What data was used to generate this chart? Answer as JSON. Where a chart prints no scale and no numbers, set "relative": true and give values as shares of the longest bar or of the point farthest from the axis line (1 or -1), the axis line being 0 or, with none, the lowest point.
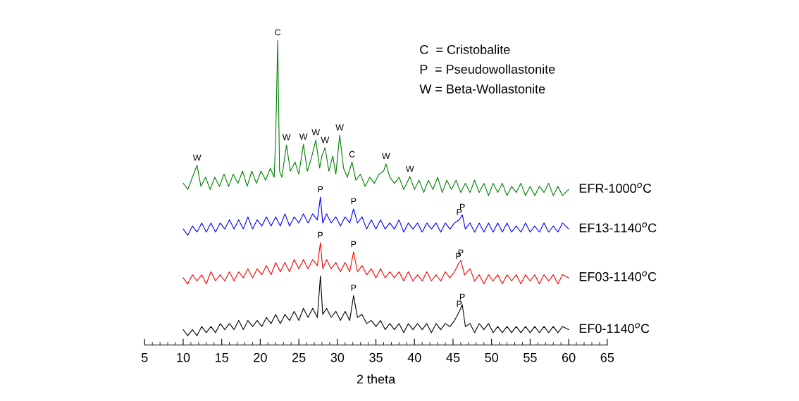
{
  "chart_data": {
    "type": "line",
    "xlabel": "2 theta",
    "xlim": [
      5,
      65
    ],
    "xticks": [
      5,
      10,
      15,
      20,
      25,
      30,
      35,
      40,
      45,
      50,
      55,
      60,
      65
    ],
    "relative": true,
    "tick_labels": "x",
    "legend": false,
    "grid": false,
    "series": [
      {
        "name": "EFR-1000$^{o}$C",
        "color": "#008000",
        "x": [
          10,
          10.6,
          11.2,
          11.8,
          12.3,
          12.9,
          13.5,
          14.1,
          14.7,
          15.3,
          15.9,
          16.5,
          17.1,
          17.7,
          18.3,
          18.9,
          19.5,
          20.1,
          20.7,
          21.3,
          21.8,
          22.0,
          22.26,
          22.5,
          22.8,
          23.4,
          23.9,
          24.5,
          25.0,
          25.6,
          26.1,
          26.6,
          27.2,
          27.7,
          28.0,
          28.4,
          28.9,
          29.4,
          29.8,
          30.3,
          30.8,
          31.3,
          31.9,
          32.4,
          33.0,
          33.6,
          34.2,
          34.8,
          35.4,
          36.0,
          36.3,
          36.8,
          37.4,
          38.0,
          38.6,
          39.0,
          39.4,
          40.0,
          40.6,
          41.2,
          41.8,
          42.4,
          43.0,
          43.6,
          44.2,
          44.8,
          45.4,
          46.0,
          46.6,
          47.2,
          47.8,
          48.4,
          49.0,
          49.6,
          50.2,
          50.8,
          51.4,
          52.0,
          52.6,
          53.2,
          53.8,
          54.4,
          55.0,
          55.6,
          56.2,
          56.8,
          57.4,
          58.0,
          58.6,
          59.2,
          60.0
        ],
        "values": [
          0.53,
          0.51,
          0.55,
          0.589,
          0.52,
          0.55,
          0.51,
          0.55,
          0.52,
          0.56,
          0.52,
          0.56,
          0.53,
          0.57,
          0.52,
          0.57,
          0.53,
          0.57,
          0.54,
          0.58,
          0.55,
          0.68,
          1.0,
          0.57,
          0.55,
          0.656,
          0.57,
          0.6,
          0.56,
          0.658,
          0.57,
          0.61,
          0.672,
          0.58,
          0.62,
          0.647,
          0.57,
          0.62,
          0.56,
          0.688,
          0.58,
          0.55,
          0.6,
          0.54,
          0.56,
          0.52,
          0.55,
          0.53,
          0.56,
          0.57,
          0.594,
          0.55,
          0.53,
          0.55,
          0.51,
          0.53,
          0.552,
          0.51,
          0.54,
          0.5,
          0.54,
          0.51,
          0.55,
          0.5,
          0.54,
          0.51,
          0.54,
          0.5,
          0.53,
          0.5,
          0.54,
          0.5,
          0.53,
          0.49,
          0.53,
          0.5,
          0.53,
          0.49,
          0.52,
          0.5,
          0.53,
          0.49,
          0.52,
          0.49,
          0.52,
          0.5,
          0.53,
          0.49,
          0.52,
          0.49,
          0.51
        ]
      },
      {
        "name": "EF13-1140$^{o}$C",
        "color": "#0000ff",
        "x": [
          10,
          10.6,
          11.2,
          11.8,
          12.4,
          13.0,
          13.6,
          14.2,
          14.8,
          15.4,
          16.0,
          16.6,
          17.2,
          17.8,
          18.4,
          19.0,
          19.6,
          20.2,
          20.8,
          21.4,
          22.0,
          22.6,
          23.2,
          23.8,
          24.4,
          25.0,
          25.6,
          26.2,
          26.8,
          27.4,
          27.8,
          28.1,
          28.6,
          29.2,
          29.8,
          30.4,
          31.0,
          31.6,
          32.1,
          32.6,
          33.2,
          33.8,
          34.4,
          35.0,
          35.6,
          36.2,
          36.8,
          37.4,
          38.0,
          38.6,
          39.2,
          39.8,
          40.4,
          41.0,
          41.6,
          42.2,
          42.8,
          43.4,
          44.0,
          44.6,
          45.2,
          45.8,
          46.2,
          46.6,
          47.2,
          47.8,
          48.4,
          49.0,
          49.6,
          50.2,
          50.8,
          51.4,
          52.0,
          52.6,
          53.2,
          53.8,
          54.4,
          55.0,
          55.6,
          56.2,
          56.8,
          57.4,
          58.0,
          58.6,
          59.2,
          60.0
        ],
        "values": [
          0.38,
          0.36,
          0.39,
          0.37,
          0.4,
          0.37,
          0.4,
          0.37,
          0.4,
          0.38,
          0.41,
          0.38,
          0.41,
          0.38,
          0.42,
          0.38,
          0.41,
          0.39,
          0.42,
          0.39,
          0.42,
          0.39,
          0.43,
          0.39,
          0.42,
          0.4,
          0.43,
          0.4,
          0.43,
          0.41,
          0.485,
          0.4,
          0.43,
          0.4,
          0.42,
          0.39,
          0.42,
          0.4,
          0.446,
          0.4,
          0.42,
          0.38,
          0.41,
          0.38,
          0.41,
          0.38,
          0.4,
          0.38,
          0.41,
          0.37,
          0.4,
          0.38,
          0.4,
          0.37,
          0.4,
          0.38,
          0.4,
          0.37,
          0.4,
          0.38,
          0.4,
          0.41,
          0.427,
          0.38,
          0.4,
          0.37,
          0.4,
          0.37,
          0.4,
          0.37,
          0.4,
          0.37,
          0.4,
          0.37,
          0.39,
          0.37,
          0.4,
          0.37,
          0.39,
          0.37,
          0.4,
          0.37,
          0.39,
          0.37,
          0.4,
          0.38
        ]
      },
      {
        "name": "EF03-1140$^{o}$C",
        "color": "#ff0000",
        "x": [
          10,
          10.6,
          11.2,
          11.8,
          12.4,
          13.0,
          13.6,
          14.2,
          14.8,
          15.4,
          16.0,
          16.6,
          17.2,
          17.8,
          18.4,
          19.0,
          19.6,
          20.2,
          20.8,
          21.4,
          22.0,
          22.6,
          23.2,
          23.8,
          24.4,
          25.0,
          25.6,
          26.2,
          26.8,
          27.4,
          27.8,
          28.1,
          28.6,
          29.2,
          29.8,
          30.4,
          31.0,
          31.6,
          32.1,
          32.6,
          33.2,
          33.8,
          34.4,
          35.0,
          35.6,
          36.2,
          36.8,
          37.4,
          38.0,
          38.6,
          39.2,
          39.8,
          40.4,
          41.0,
          41.6,
          42.2,
          42.8,
          43.4,
          44.0,
          44.6,
          45.2,
          45.7,
          46.0,
          46.5,
          47.2,
          47.8,
          48.4,
          49.0,
          49.6,
          50.2,
          50.8,
          51.4,
          52.0,
          52.6,
          53.2,
          53.8,
          54.4,
          55.0,
          55.6,
          56.2,
          56.8,
          57.4,
          58.0,
          58.6,
          59.2,
          60.0
        ],
        "values": [
          0.22,
          0.2,
          0.23,
          0.21,
          0.23,
          0.2,
          0.24,
          0.21,
          0.23,
          0.21,
          0.24,
          0.21,
          0.24,
          0.22,
          0.25,
          0.22,
          0.25,
          0.23,
          0.26,
          0.23,
          0.27,
          0.24,
          0.27,
          0.24,
          0.28,
          0.25,
          0.28,
          0.25,
          0.28,
          0.26,
          0.335,
          0.25,
          0.28,
          0.25,
          0.27,
          0.24,
          0.27,
          0.24,
          0.305,
          0.24,
          0.26,
          0.23,
          0.25,
          0.22,
          0.25,
          0.22,
          0.24,
          0.22,
          0.24,
          0.21,
          0.24,
          0.21,
          0.23,
          0.21,
          0.24,
          0.21,
          0.23,
          0.21,
          0.24,
          0.22,
          0.24,
          0.266,
          0.277,
          0.23,
          0.25,
          0.21,
          0.23,
          0.2,
          0.23,
          0.21,
          0.23,
          0.2,
          0.23,
          0.21,
          0.23,
          0.2,
          0.23,
          0.21,
          0.23,
          0.2,
          0.23,
          0.21,
          0.23,
          0.2,
          0.23,
          0.22
        ]
      },
      {
        "name": "EF0-1140$^{o}$C",
        "color": "#000000",
        "x": [
          10,
          10.6,
          11.2,
          11.8,
          12.4,
          13.0,
          13.6,
          14.2,
          14.8,
          15.4,
          16.0,
          16.6,
          17.2,
          17.8,
          18.4,
          19.0,
          19.6,
          20.2,
          20.8,
          21.4,
          22.0,
          22.6,
          23.2,
          23.8,
          24.4,
          25.0,
          25.6,
          26.2,
          26.8,
          27.4,
          27.8,
          28.1,
          28.6,
          29.2,
          29.8,
          30.4,
          31.0,
          31.6,
          32.1,
          32.6,
          33.2,
          33.8,
          34.4,
          35.0,
          35.6,
          36.2,
          36.8,
          37.4,
          38.0,
          38.6,
          39.2,
          39.8,
          40.4,
          41.0,
          41.6,
          42.2,
          42.8,
          43.4,
          44.0,
          44.6,
          45.2,
          45.8,
          46.2,
          46.6,
          47.2,
          47.8,
          48.4,
          49.0,
          49.6,
          50.2,
          50.8,
          51.4,
          52.0,
          52.6,
          53.2,
          53.8,
          54.4,
          55.0,
          55.6,
          56.2,
          56.8,
          57.4,
          58.0,
          58.6,
          59.2,
          60.0
        ],
        "values": [
          0.05,
          0.03,
          0.05,
          0.03,
          0.06,
          0.04,
          0.06,
          0.04,
          0.07,
          0.05,
          0.07,
          0.05,
          0.08,
          0.05,
          0.08,
          0.06,
          0.08,
          0.06,
          0.09,
          0.07,
          0.1,
          0.07,
          0.1,
          0.08,
          0.11,
          0.08,
          0.12,
          0.09,
          0.12,
          0.09,
          0.226,
          0.1,
          0.12,
          0.09,
          0.11,
          0.08,
          0.11,
          0.08,
          0.162,
          0.09,
          0.1,
          0.07,
          0.08,
          0.06,
          0.08,
          0.05,
          0.07,
          0.05,
          0.07,
          0.04,
          0.07,
          0.05,
          0.07,
          0.05,
          0.07,
          0.04,
          0.07,
          0.05,
          0.07,
          0.06,
          0.08,
          0.109,
          0.132,
          0.06,
          0.07,
          0.04,
          0.07,
          0.05,
          0.07,
          0.04,
          0.06,
          0.04,
          0.06,
          0.04,
          0.06,
          0.04,
          0.06,
          0.04,
          0.06,
          0.04,
          0.06,
          0.04,
          0.06,
          0.04,
          0.06,
          0.05
        ]
      }
    ],
    "annotations": [
      "C  = Cristobalite",
      "P  = Pseudowollastonite",
      "W = Beta-Wollastonite",
      {
        "text": "W",
        "x": 11.8,
        "y": 0.589
      },
      {
        "text": "C",
        "x": 22.26,
        "y": 1.0
      },
      {
        "text": "W",
        "x": 23.4,
        "y": 0.656
      },
      {
        "text": "W",
        "x": 25.6,
        "y": 0.658
      },
      {
        "text": "W",
        "x": 27.2,
        "y": 0.672
      },
      {
        "text": "W",
        "x": 28.4,
        "y": 0.647
      },
      {
        "text": "W",
        "x": 30.3,
        "y": 0.688
      },
      {
        "text": "C",
        "x": 31.9,
        "y": 0.6
      },
      {
        "text": "W",
        "x": 36.3,
        "y": 0.594
      },
      {
        "text": "W",
        "x": 39.4,
        "y": 0.552
      },
      {
        "text": "P",
        "x": 27.8,
        "y": 0.485
      },
      {
        "text": "P",
        "x": 32.1,
        "y": 0.446
      },
      {
        "text": "P",
        "x": 45.8,
        "y": 0.41
      },
      {
        "text": "P",
        "x": 46.2,
        "y": 0.427
      },
      {
        "text": "P",
        "x": 27.8,
        "y": 0.335
      },
      {
        "text": "P",
        "x": 32.1,
        "y": 0.305
      },
      {
        "text": "P",
        "x": 45.7,
        "y": 0.266
      },
      {
        "text": "P",
        "x": 46.0,
        "y": 0.277
      },
      {
        "text": "P",
        "x": 32.1,
        "y": 0.162
      },
      {
        "text": "P",
        "x": 45.8,
        "y": 0.109
      },
      {
        "text": "P",
        "x": 46.2,
        "y": 0.132
      }
    ]
  }
}
